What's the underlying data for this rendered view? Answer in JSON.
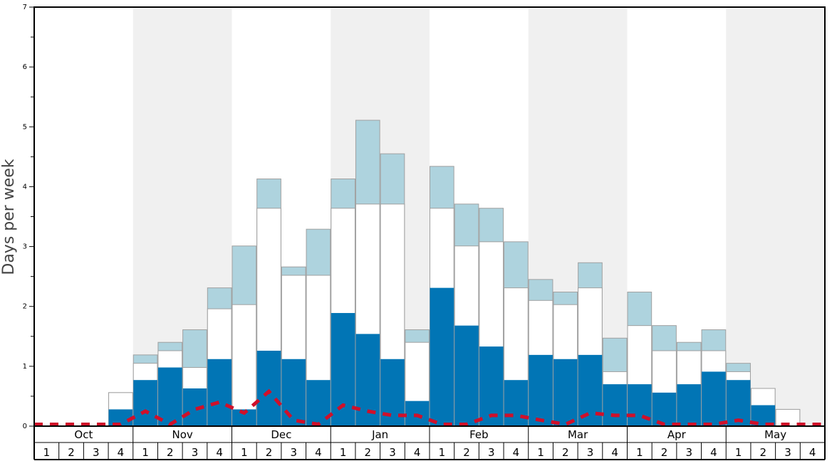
{
  "chart_data": {
    "type": "bar",
    "ylabel": "Days per week",
    "xlabel": "",
    "ylim": [
      0,
      7
    ],
    "yticks": [
      0,
      1,
      2,
      3,
      4,
      5,
      6,
      7
    ],
    "months": [
      "Oct",
      "Nov",
      "Dec",
      "Jan",
      "Feb",
      "Mar",
      "Apr",
      "May"
    ],
    "week_labels": [
      "1",
      "2",
      "3",
      "4"
    ],
    "colors": {
      "dark": "#0175b5",
      "middle": "#ffffff",
      "light": "#aed3de",
      "line": "#d0102a",
      "band": "#f0f0f0"
    },
    "series": [
      {
        "values": [
          0,
          0,
          0,
          0.28,
          0.77,
          0.98,
          0.63,
          1.12,
          0.28,
          1.26,
          1.12,
          0.77,
          1.89,
          1.54,
          1.12,
          0.42,
          2.31,
          1.68,
          1.33,
          0.77,
          1.19,
          1.12,
          1.19,
          0.7,
          0.7,
          0.56,
          0.7,
          0.91,
          0.77,
          0.35,
          0,
          0
        ]
      },
      {
        "values": [
          0,
          0,
          0,
          0.56,
          1.05,
          1.26,
          0.98,
          1.96,
          2.03,
          3.64,
          2.52,
          2.52,
          3.64,
          3.71,
          3.71,
          1.4,
          3.64,
          3.01,
          3.08,
          2.31,
          2.1,
          2.03,
          2.31,
          0.91,
          1.68,
          1.26,
          1.26,
          1.26,
          0.91,
          0.63,
          0.28,
          0
        ]
      },
      {
        "values": [
          0,
          0,
          0,
          0.56,
          1.19,
          1.4,
          1.61,
          2.31,
          3.01,
          4.13,
          2.66,
          3.29,
          4.13,
          5.11,
          4.55,
          1.61,
          4.34,
          3.71,
          3.64,
          3.08,
          2.45,
          2.24,
          2.73,
          1.47,
          2.24,
          1.68,
          1.4,
          1.61,
          1.05,
          0.63,
          0.28,
          0
        ]
      },
      {
        "type": "line",
        "values": [
          0.03,
          0.03,
          0.03,
          0.03,
          0.25,
          0.03,
          0.28,
          0.4,
          0.22,
          0.58,
          0.1,
          0.03,
          0.35,
          0.25,
          0.18,
          0.18,
          0.03,
          0.03,
          0.18,
          0.18,
          0.1,
          0.03,
          0.22,
          0.18,
          0.18,
          0.03,
          0.03,
          0.03,
          0.1,
          0.03,
          0.03,
          0.03
        ]
      }
    ]
  }
}
